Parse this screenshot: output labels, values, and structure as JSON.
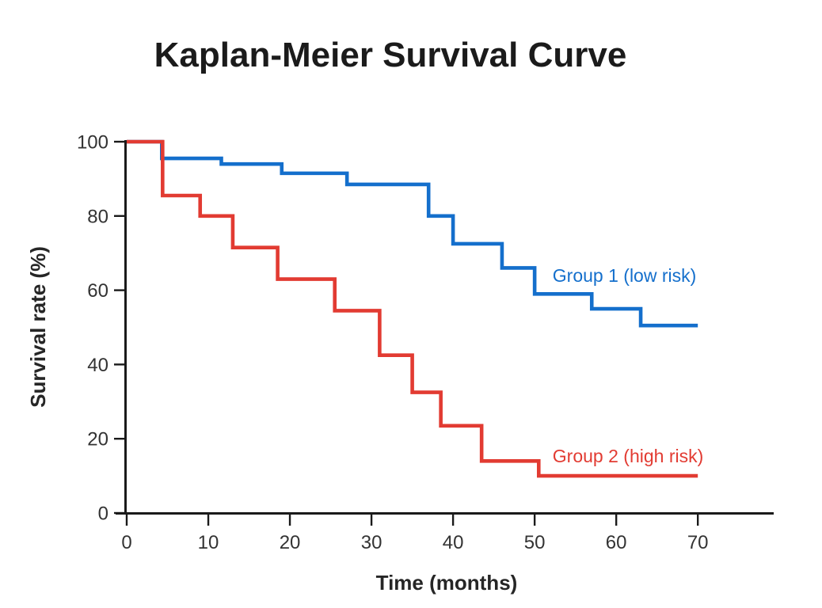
{
  "chart_data": {
    "type": "line",
    "subtype": "step-survival",
    "title": "Kaplan-Meier Survival Curve",
    "xlabel": "Time (months)",
    "ylabel": "Survival rate (%)",
    "xlim": [
      0,
      79.3
    ],
    "ylim": [
      0,
      100
    ],
    "xticks": [
      0,
      10,
      20,
      30,
      40,
      50,
      60,
      70
    ],
    "yticks": [
      0,
      20,
      40,
      60,
      80,
      100
    ],
    "grid": false,
    "legend_position": "inline-annotations",
    "colors": {
      "axis": "#1a1a1a",
      "tick_label": "#333333",
      "title": "#1b1b1b",
      "group1_blue": "#146fcc",
      "group2_red": "#e23b32"
    },
    "series": [
      {
        "name": "Group 1 (low risk)",
        "color": "#146fcc",
        "end_x": 70,
        "steps": [
          [
            0,
            100
          ],
          [
            4.3,
            95.5
          ],
          [
            11.6,
            94
          ],
          [
            19,
            91.5
          ],
          [
            27,
            88.5
          ],
          [
            37,
            80
          ],
          [
            40,
            72.5
          ],
          [
            46,
            66
          ],
          [
            50,
            59
          ],
          [
            57,
            55
          ],
          [
            63,
            50.5
          ]
        ]
      },
      {
        "name": "Group 2 (high risk)",
        "color": "#e23b32",
        "end_x": 70,
        "steps": [
          [
            0,
            100
          ],
          [
            4.4,
            85.5
          ],
          [
            9,
            80
          ],
          [
            13,
            71.5
          ],
          [
            18.5,
            63
          ],
          [
            25.5,
            54.5
          ],
          [
            31,
            42.5
          ],
          [
            35,
            32.5
          ],
          [
            38.5,
            23.5
          ],
          [
            43.5,
            14
          ],
          [
            50.5,
            10
          ]
        ]
      }
    ],
    "annotations": [
      {
        "text": "Group 1 (low risk)",
        "x": 52.2,
        "y": 64,
        "color": "#146fcc"
      },
      {
        "text": "Group 2 (high risk)",
        "x": 52.2,
        "y": 15.3,
        "color": "#e23b32"
      }
    ]
  }
}
